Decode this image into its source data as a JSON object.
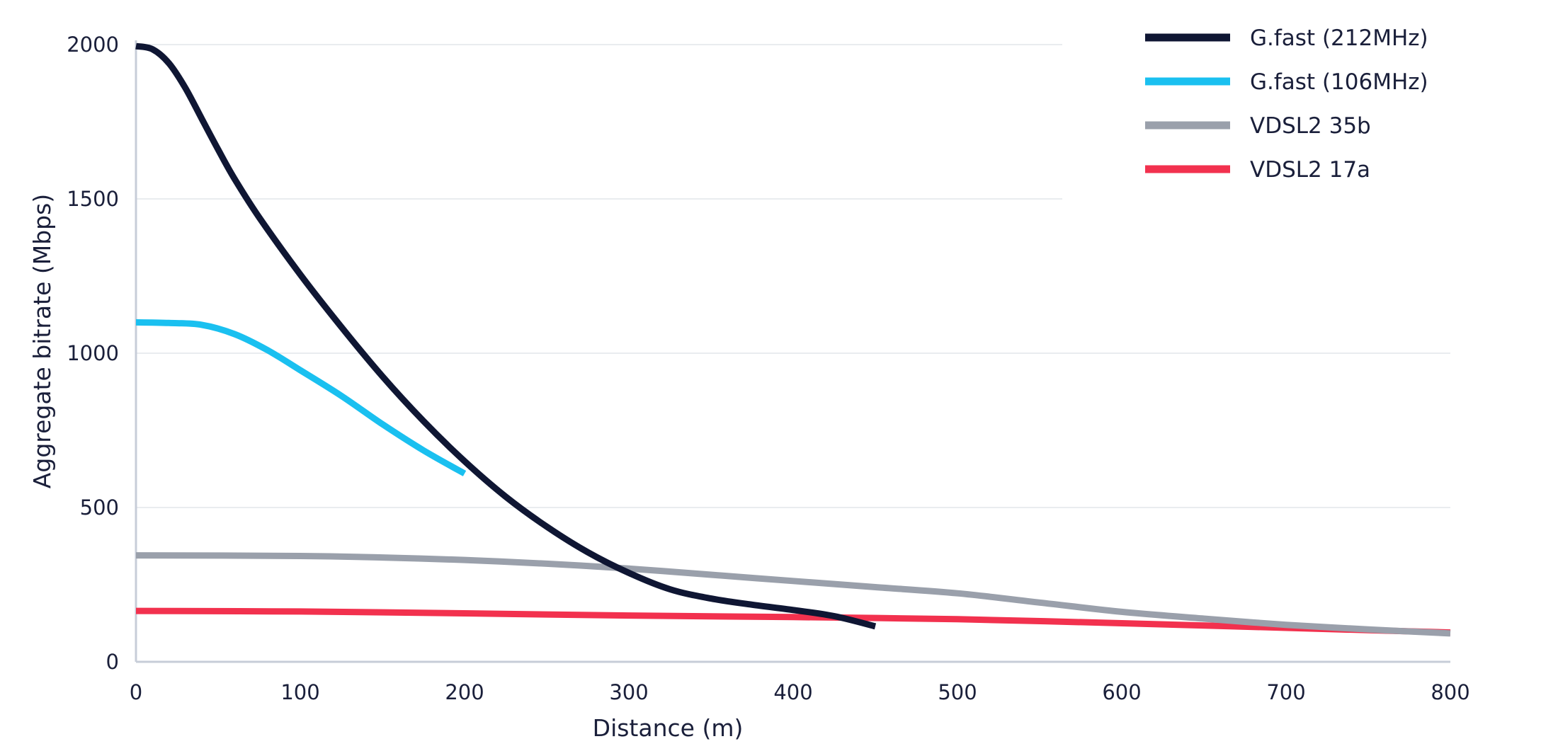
{
  "chart_data": {
    "type": "line",
    "title": "",
    "xlabel": "Distance (m)",
    "ylabel": "Aggregate bitrate (Mbps)",
    "xlim": [
      0,
      800
    ],
    "ylim": [
      0,
      2000
    ],
    "x_ticks": [
      0,
      100,
      200,
      300,
      400,
      500,
      600,
      700,
      800
    ],
    "y_ticks": [
      0,
      500,
      1000,
      1500,
      2000
    ],
    "x_tick_labels": [
      "0",
      "100",
      "200",
      "300",
      "400",
      "500",
      "600",
      "700",
      "800"
    ],
    "y_tick_labels": [
      "0",
      "500",
      "1000",
      "1500",
      "2000"
    ],
    "grid": "horizontal",
    "legend_position": "top-right",
    "series": [
      {
        "name": "G.fast (212MHz)",
        "color": "#0f1633",
        "points": [
          [
            0,
            1995
          ],
          [
            10,
            1985
          ],
          [
            20,
            1940
          ],
          [
            30,
            1860
          ],
          [
            40,
            1760
          ],
          [
            50,
            1660
          ],
          [
            60,
            1565
          ],
          [
            75,
            1440
          ],
          [
            100,
            1255
          ],
          [
            125,
            1085
          ],
          [
            150,
            925
          ],
          [
            175,
            780
          ],
          [
            200,
            650
          ],
          [
            225,
            535
          ],
          [
            250,
            438
          ],
          [
            275,
            355
          ],
          [
            300,
            288
          ],
          [
            325,
            235
          ],
          [
            350,
            205
          ],
          [
            375,
            185
          ],
          [
            400,
            168
          ],
          [
            425,
            148
          ],
          [
            450,
            115
          ]
        ]
      },
      {
        "name": "G.fast (106MHz)",
        "color": "#1ac0f0",
        "points": [
          [
            0,
            1100
          ],
          [
            20,
            1098
          ],
          [
            40,
            1092
          ],
          [
            60,
            1062
          ],
          [
            80,
            1010
          ],
          [
            100,
            945
          ],
          [
            125,
            862
          ],
          [
            150,
            770
          ],
          [
            175,
            685
          ],
          [
            200,
            610
          ]
        ]
      },
      {
        "name": "VDSL2 35b",
        "color": "#9aa0ab",
        "points": [
          [
            0,
            345
          ],
          [
            100,
            343
          ],
          [
            150,
            338
          ],
          [
            200,
            330
          ],
          [
            250,
            318
          ],
          [
            300,
            302
          ],
          [
            350,
            282
          ],
          [
            400,
            262
          ],
          [
            450,
            242
          ],
          [
            500,
            222
          ],
          [
            550,
            192
          ],
          [
            600,
            162
          ],
          [
            650,
            140
          ],
          [
            700,
            120
          ],
          [
            750,
            105
          ],
          [
            800,
            92
          ]
        ]
      },
      {
        "name": "VDSL2 17a",
        "color": "#f2314e",
        "points": [
          [
            0,
            165
          ],
          [
            100,
            163
          ],
          [
            200,
            157
          ],
          [
            300,
            150
          ],
          [
            400,
            145
          ],
          [
            500,
            138
          ],
          [
            600,
            125
          ],
          [
            700,
            110
          ],
          [
            800,
            95
          ]
        ]
      }
    ]
  }
}
